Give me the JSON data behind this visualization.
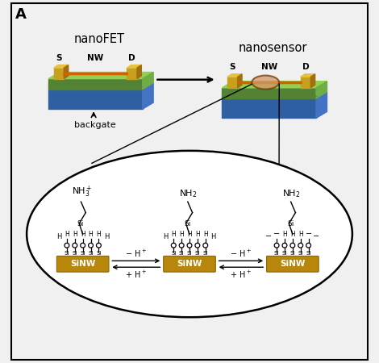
{
  "title": "A",
  "nanofet_label": "nanoFET",
  "nanosensor_label": "nanosensor",
  "backgate_label": "backgate",
  "s_label": "S",
  "d_label": "D",
  "nw_label": "NW",
  "sinw_label": "SiNW",
  "colors": {
    "blue_layer_top": "#5B9BD5",
    "blue_layer_side": "#4472C4",
    "blue_layer_front": "#2E5FA3",
    "green_layer_top": "#92D050",
    "green_layer_side": "#70AD47",
    "green_layer_front": "#548235",
    "gold_electrode": "#C8A020",
    "gold_electrode_dark": "#A07010",
    "sinw_bar": "#B8860B",
    "sinw_bar_dark": "#8B6508",
    "nw_orange": "#D46000",
    "oval_brown": "#6B3A00",
    "background": "#F0F0F0",
    "white": "#FFFFFF",
    "black": "#000000"
  },
  "fig_width": 4.7,
  "fig_height": 4.5,
  "dpi": 100
}
